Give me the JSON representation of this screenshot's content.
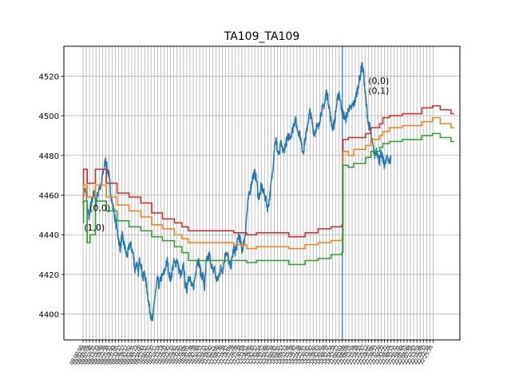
{
  "chart_data": {
    "type": "line",
    "title": "TA109_TA109",
    "xlabel": "",
    "ylabel": "",
    "ylim": [
      4387,
      4535
    ],
    "yticks": [
      4400,
      4420,
      4440,
      4460,
      4480,
      4500,
      4520
    ],
    "grid": true,
    "x_ticks": [
      "09:00:00",
      "09:02:59",
      "09:05:09",
      "09:07:40",
      "09:10:31",
      "09:13:33",
      "09:16:40",
      "09:19:36",
      "09:22:38",
      "09:25:51",
      "09:28:43",
      "09:31:05",
      "09:33:57",
      "09:36:57",
      "09:39:17",
      "09:42:02",
      "09:45:35",
      "09:48:23",
      "09:51:20",
      "09:54:43",
      "09:57:51",
      "10:00:52",
      "10:03:37",
      "10:07:11",
      "10:10:14",
      "10:13:14",
      "10:16:31",
      "10:19:47",
      "10:22:35",
      "10:25:41",
      "10:28:55",
      "10:32:02",
      "10:35:09",
      "10:38:01",
      "10:41:38",
      "10:44:38",
      "10:47:44",
      "10:50:51",
      "10:53:33",
      "10:56:41",
      "10:59:42",
      "11:02:21",
      "11:05:00",
      "11:08:30",
      "11:11:38",
      "11:14:57",
      "11:18:09",
      "11:21:28",
      "11:24:38",
      "11:27:34",
      "11:30:59",
      "13:33:51",
      "13:36:40",
      "13:39:45",
      "13:42:57",
      "13:45:54",
      "13:48:52",
      "13:51:48",
      "13:54:45",
      "13:57:34",
      "14:00:41",
      "14:03:55",
      "14:06:53",
      "14:09:53",
      "14:12:46",
      "14:15:38",
      "14:18:47",
      "14:21:39",
      "14:24:46",
      "14:27:51",
      "14:30:41",
      "14:33:47",
      "14:36:46",
      "14:39:43",
      "14:42:41",
      "14:45:38",
      "14:48:37",
      "14:51:34",
      "14:54:34",
      "14:57:27",
      "21:00:03",
      "21:03:09",
      "21:06:09",
      "21:09:15",
      "21:12:34",
      "21:15:38",
      "21:18:55",
      "21:21:57",
      "21:25:12",
      "21:28:02",
      "21:31:00",
      "21:34:17",
      "21:37:20",
      "21:40:22",
      "21:43:21",
      "21:46:24",
      "21:49:15",
      "21:52:31",
      "21:55:35",
      "21:58:44",
      "22:01:55",
      "22:04:49",
      "22:07:56",
      "22:10:57",
      "22:13:58",
      "22:16:49",
      "22:19:37",
      "22:22:38",
      "22:25:36"
    ],
    "vline_at_tick_index": 80,
    "price_series": {
      "name": "",
      "color": "#1f77b4",
      "values": [
        4458,
        4463,
        4460,
        4452,
        4448,
        4456,
        4459,
        4461,
        4456,
        4460,
        4465,
        4463,
        4470,
        4474,
        4478,
        4473,
        4470,
        4462,
        4456,
        4452,
        4447,
        4443,
        4437,
        4433,
        4440,
        4436,
        4433,
        4429,
        4432,
        4436,
        4433,
        4430,
        4422,
        4426,
        4420,
        4428,
        4424,
        4418,
        4421,
        4415,
        4409,
        4403,
        4399,
        4397,
        4407,
        4412,
        4418,
        4414,
        4418,
        4419,
        4421,
        4424,
        4427,
        4421,
        4417,
        4422,
        4426,
        4425,
        4428,
        4423,
        4420,
        4420,
        4425,
        4415,
        4412,
        4419,
        4418,
        4414,
        4413,
        4418,
        4425,
        4427,
        4424,
        4419,
        4420,
        4413,
        4426,
        4428,
        4430,
        4426,
        4421,
        4424,
        4418,
        4417,
        4420,
        4423,
        4422,
        4426,
        4432,
        4430,
        4426,
        4424,
        4428,
        4433,
        4431,
        4435,
        4440,
        4437,
        4432,
        4435,
        4440,
        4450,
        4458,
        4462,
        4466,
        4470,
        4471,
        4468,
        4460,
        4459,
        4465,
        4462,
        4460,
        4457,
        4453,
        4458,
        4465,
        4472,
        4484,
        4488,
        4482,
        4480,
        4486,
        4483,
        4482,
        4486,
        4488,
        4490,
        4490,
        4492,
        4496,
        4498,
        4494,
        4492,
        4490,
        4484,
        4482,
        4488,
        4492,
        4498,
        4502,
        4498,
        4493,
        4491,
        4495,
        4493,
        4498,
        4502,
        4504,
        4506,
        4512,
        4509,
        4504,
        4497,
        4494,
        4496,
        4503,
        4508,
        4512,
        4506,
        4502,
        4500,
        4498,
        4501,
        4504,
        4503,
        4505,
        4506,
        4508,
        4512,
        4516,
        4520,
        4526,
        4522,
        4512,
        4504,
        4496,
        4494,
        4488,
        4484,
        4480,
        4483,
        4480,
        4477,
        4481,
        4478,
        4475,
        4477,
        4480,
        4476,
        4479
      ],
      "step_ticks": 0.5
    },
    "step_series": [
      {
        "name": "",
        "color": "#d62728",
        "steps": [
          [
            0,
            4458
          ],
          [
            0.15,
            4473
          ],
          [
            1.3,
            4466
          ],
          [
            3.8,
            4473
          ],
          [
            7.2,
            4466
          ],
          [
            10.5,
            4461
          ],
          [
            14.2,
            4459
          ],
          [
            17.8,
            4456
          ],
          [
            21.2,
            4451
          ],
          [
            24.5,
            4448
          ],
          [
            28.2,
            4446
          ],
          [
            30.5,
            4444
          ],
          [
            32.5,
            4442
          ],
          [
            46.5,
            4441
          ],
          [
            50.5,
            4440
          ],
          [
            53.5,
            4441
          ],
          [
            63.5,
            4439
          ],
          [
            68.5,
            4441
          ],
          [
            72.5,
            4443
          ],
          [
            76.5,
            4444
          ],
          [
            79.8,
            4445
          ],
          [
            80.2,
            4488
          ],
          [
            81.8,
            4489
          ],
          [
            83.5,
            4489
          ],
          [
            87.2,
            4491
          ],
          [
            88.8,
            4494
          ],
          [
            91.5,
            4496
          ],
          [
            92.5,
            4499
          ],
          [
            94.5,
            4500
          ],
          [
            98.5,
            4501
          ],
          [
            104.5,
            4504
          ],
          [
            107.8,
            4505
          ],
          [
            110.2,
            4503
          ],
          [
            113.5,
            4501
          ]
        ]
      },
      {
        "name": "",
        "color": "#ff7f0e",
        "steps": [
          [
            0,
            4452
          ],
          [
            0.15,
            4465
          ],
          [
            1.3,
            4459
          ],
          [
            3.8,
            4465
          ],
          [
            7.2,
            4459
          ],
          [
            10.5,
            4455
          ],
          [
            14.2,
            4452
          ],
          [
            17.8,
            4449
          ],
          [
            21.2,
            4445
          ],
          [
            24.5,
            4443
          ],
          [
            28.2,
            4440
          ],
          [
            30.5,
            4438
          ],
          [
            32.5,
            4436
          ],
          [
            46.5,
            4435
          ],
          [
            50.5,
            4433
          ],
          [
            53.5,
            4434
          ],
          [
            63.5,
            4433
          ],
          [
            68.5,
            4435
          ],
          [
            72.5,
            4436
          ],
          [
            76.5,
            4437
          ],
          [
            79.8,
            4438
          ],
          [
            80.2,
            4482
          ],
          [
            81.8,
            4480
          ],
          [
            83.5,
            4483
          ],
          [
            87.2,
            4485
          ],
          [
            88.8,
            4488
          ],
          [
            91.5,
            4490
          ],
          [
            92.5,
            4492
          ],
          [
            94.5,
            4494
          ],
          [
            98.5,
            4495
          ],
          [
            104.5,
            4497
          ],
          [
            107.8,
            4499
          ],
          [
            110.2,
            4496
          ],
          [
            113.5,
            4494
          ]
        ]
      },
      {
        "name": "",
        "color": "#2ca02c",
        "steps": [
          [
            0,
            4446
          ],
          [
            0.15,
            4457
          ],
          [
            1.3,
            4436
          ],
          [
            2.2,
            4440
          ],
          [
            3.8,
            4457
          ],
          [
            7.2,
            4452
          ],
          [
            10.5,
            4447
          ],
          [
            14.2,
            4444
          ],
          [
            17.8,
            4442
          ],
          [
            21.2,
            4439
          ],
          [
            24.5,
            4437
          ],
          [
            28.2,
            4434
          ],
          [
            30.5,
            4431
          ],
          [
            32.5,
            4427
          ],
          [
            46.5,
            4427
          ],
          [
            50.5,
            4426
          ],
          [
            53.5,
            4427
          ],
          [
            63.5,
            4425
          ],
          [
            68.5,
            4427
          ],
          [
            72.5,
            4428
          ],
          [
            76.5,
            4430
          ],
          [
            79.8,
            4431
          ],
          [
            80.2,
            4475
          ],
          [
            81.8,
            4474
          ],
          [
            83.5,
            4476
          ],
          [
            87.2,
            4479
          ],
          [
            88.8,
            4482
          ],
          [
            91.5,
            4484
          ],
          [
            92.5,
            4486
          ],
          [
            94.5,
            4487
          ],
          [
            98.5,
            4488
          ],
          [
            104.5,
            4490
          ],
          [
            107.8,
            4491
          ],
          [
            110.2,
            4489
          ],
          [
            113.5,
            4487
          ]
        ]
      }
    ],
    "annotations": [
      {
        "text": "(0,0)",
        "x": 2.0,
        "y": 4452
      },
      {
        "text": "(1,0)",
        "x": 0.3,
        "y": 4442
      },
      {
        "text": "(0,0)",
        "x": 88.0,
        "y": 4516
      },
      {
        "text": "(0,1)",
        "x": 88.0,
        "y": 4511
      }
    ]
  }
}
